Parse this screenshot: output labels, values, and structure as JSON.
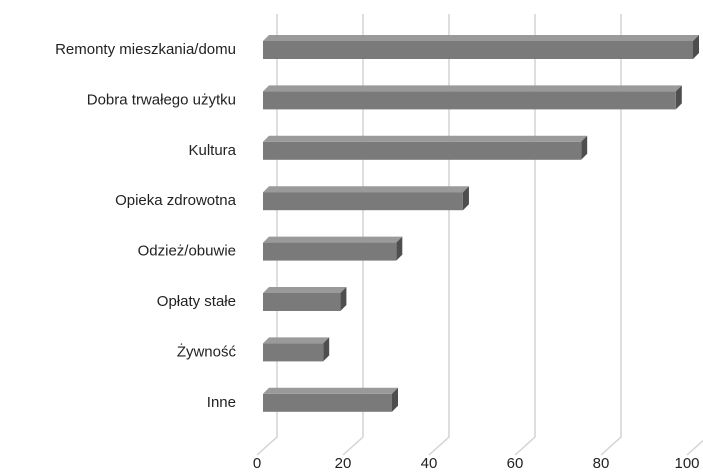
{
  "chart_data": {
    "type": "bar",
    "orientation": "horizontal",
    "categories": [
      "Remonty mieszkania/domu",
      "Dobra trwałego użytku",
      "Kultura",
      "Opieka zdrowotna",
      "Odzież/obuwie",
      "Opłaty stałe",
      "Żywność",
      "Inne"
    ],
    "values": [
      100,
      96,
      74,
      46.5,
      31,
      18,
      14,
      30
    ],
    "color": "#7a7a7a",
    "xlim": [
      0,
      100
    ],
    "xticks": [
      0,
      20,
      40,
      60,
      80,
      100
    ],
    "grid": true
  }
}
